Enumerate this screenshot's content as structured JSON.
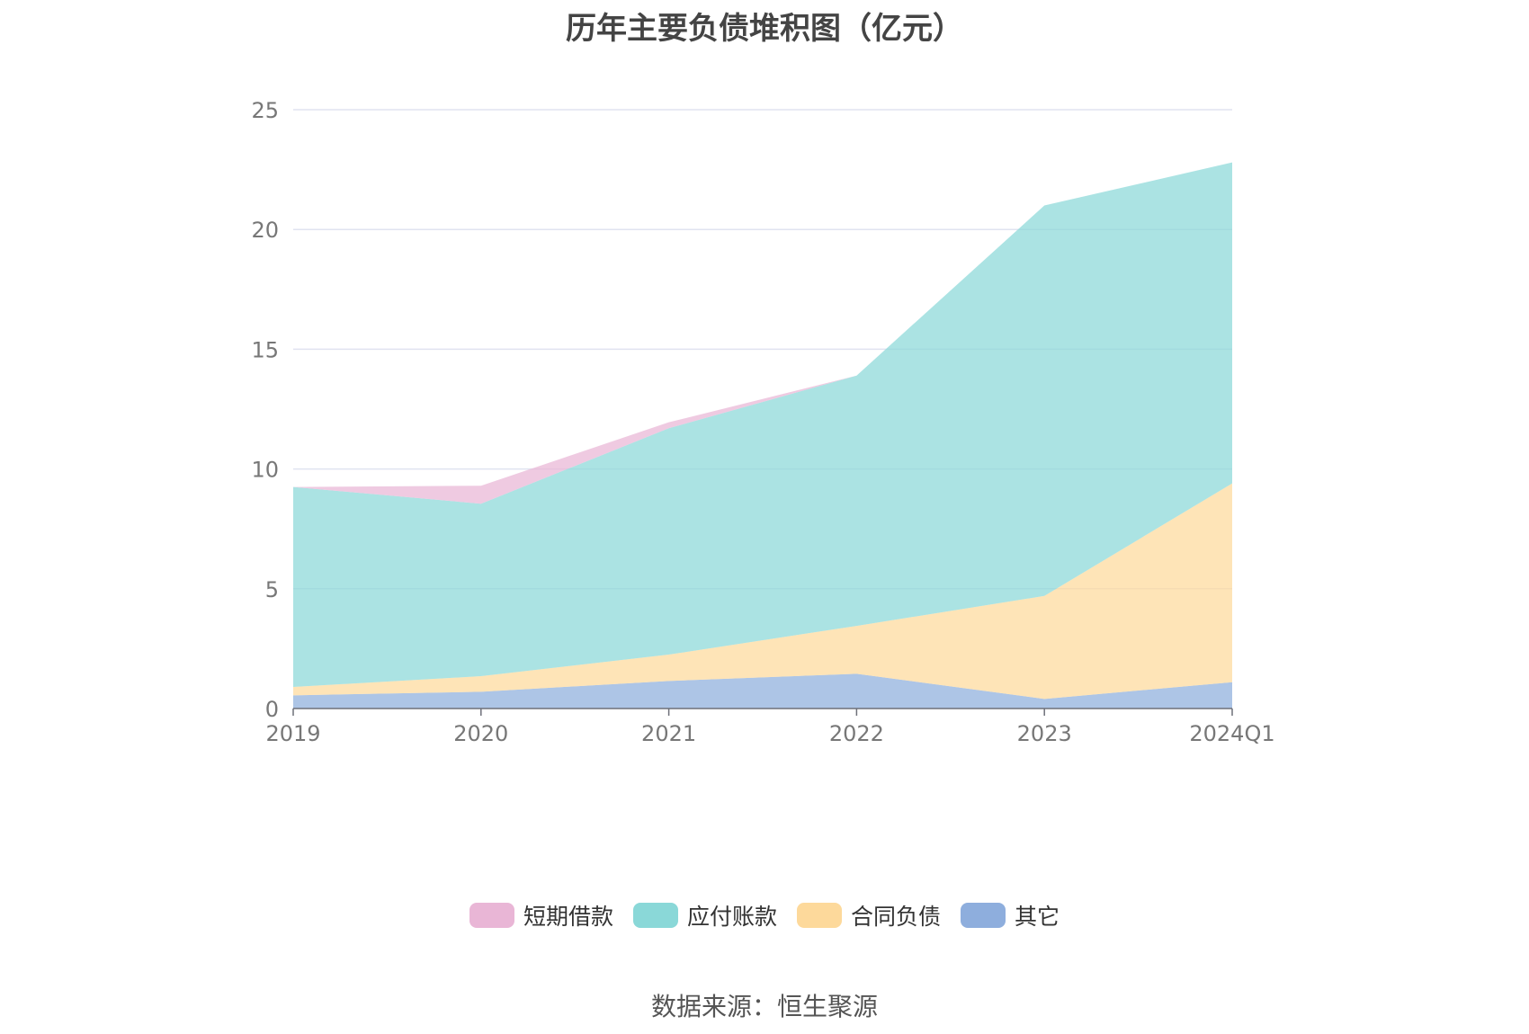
{
  "chart_data": {
    "type": "area",
    "stacked": true,
    "title": "历年主要负债堆积图（亿元）",
    "xlabel": "",
    "ylabel": "",
    "categories": [
      "2019",
      "2020",
      "2021",
      "2022",
      "2023",
      "2024Q1"
    ],
    "ylim": [
      0,
      25
    ],
    "yticks": [
      0,
      5,
      10,
      15,
      20,
      25
    ],
    "grid": true,
    "legend_position": "bottom",
    "series": [
      {
        "name": "其它",
        "color": "#8eaedd",
        "values": [
          0.55,
          0.7,
          1.15,
          1.45,
          0.4,
          1.1
        ]
      },
      {
        "name": "合同负债",
        "color": "#fdd99b",
        "values": [
          0.35,
          0.65,
          1.1,
          2.0,
          4.3,
          8.3
        ]
      },
      {
        "name": "应付账款",
        "color": "#8ad8d8",
        "values": [
          8.35,
          7.2,
          9.45,
          10.45,
          16.3,
          13.4
        ]
      },
      {
        "name": "短期借款",
        "color": "#e9b6d6",
        "values": [
          0.0,
          0.75,
          0.25,
          0.0,
          0.0,
          0.0
        ]
      }
    ],
    "legend_order": [
      "短期借款",
      "应付账款",
      "合同负债",
      "其它"
    ]
  },
  "source_text": "数据来源：恒生聚源"
}
